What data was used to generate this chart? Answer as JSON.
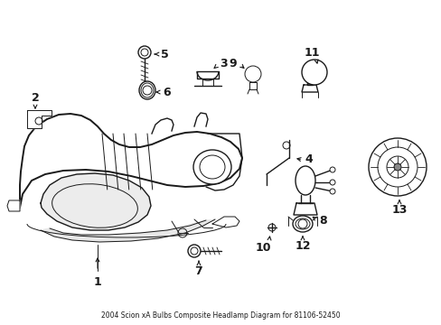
{
  "title": "2004 Scion xA Bulbs Composite Headlamp Diagram for 81106-52450",
  "bg_color": "#ffffff",
  "line_color": "#1a1a1a",
  "lw_main": 1.4,
  "lw_med": 1.0,
  "lw_thin": 0.7,
  "figsize": [
    4.89,
    3.6
  ],
  "dpi": 100
}
